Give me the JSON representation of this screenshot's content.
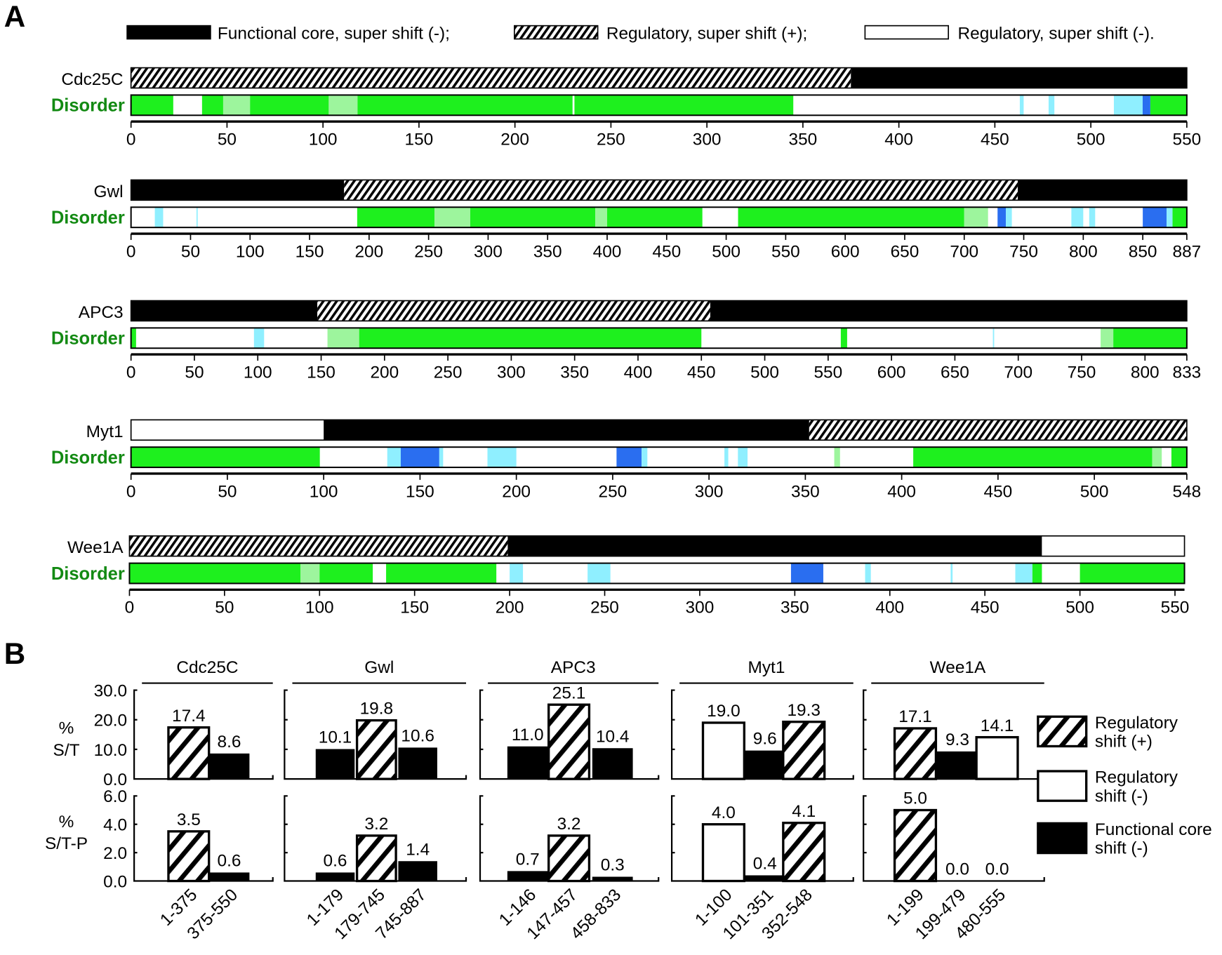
{
  "panel_a_label": "A",
  "panel_b_label": "B",
  "legend_a": [
    {
      "type": "core",
      "label": "Functional core, super shift (-);"
    },
    {
      "type": "hatch",
      "label": "Regulatory, super shift (+);"
    },
    {
      "type": "white",
      "label": "Regulatory,  super shift (-)."
    }
  ],
  "disorder_label": "Disorder",
  "colors": {
    "core": "#000000",
    "green": "#1ef01e",
    "light_green": "#9df59d",
    "cyan": "#8fefff",
    "blue": "#2a6ef0",
    "disorder_text": "#138a13"
  },
  "chart_data": [
    {
      "type": "domain-map",
      "proteins": [
        {
          "name": "Cdc25C",
          "length": 550,
          "ticks": [
            0,
            50,
            100,
            150,
            200,
            250,
            300,
            350,
            400,
            450,
            500,
            550
          ],
          "domains": [
            {
              "start": 0,
              "end": 375,
              "type": "hatch"
            },
            {
              "start": 375,
              "end": 550,
              "type": "core"
            }
          ],
          "disorder": [
            [
              0,
              22,
              "g"
            ],
            [
              37,
              48,
              "g"
            ],
            [
              48,
              62,
              "lg"
            ],
            [
              62,
              103,
              "g"
            ],
            [
              103,
              118,
              "lg"
            ],
            [
              118,
              230,
              "g"
            ],
            [
              231,
              345,
              "g"
            ],
            [
              463,
              465,
              "c"
            ],
            [
              478,
              481,
              "c"
            ],
            [
              512,
              527,
              "c"
            ],
            [
              527,
              531,
              "b"
            ],
            [
              531,
              550,
              "g"
            ]
          ]
        },
        {
          "name": "Gwl",
          "length": 887,
          "ticks": [
            0,
            50,
            100,
            150,
            200,
            250,
            300,
            350,
            400,
            450,
            500,
            550,
            600,
            650,
            700,
            750,
            800,
            850,
            887
          ],
          "domains": [
            {
              "start": 0,
              "end": 179,
              "type": "core"
            },
            {
              "start": 179,
              "end": 745,
              "type": "hatch"
            },
            {
              "start": 745,
              "end": 887,
              "type": "core"
            }
          ],
          "disorder": [
            [
              20,
              27,
              "c"
            ],
            [
              55,
              56,
              "c"
            ],
            [
              190,
              255,
              "g"
            ],
            [
              255,
              285,
              "lg"
            ],
            [
              285,
              390,
              "g"
            ],
            [
              390,
              400,
              "lg"
            ],
            [
              400,
              480,
              "g"
            ],
            [
              510,
              700,
              "g"
            ],
            [
              700,
              720,
              "lg"
            ],
            [
              728,
              735,
              "b"
            ],
            [
              735,
              740,
              "c"
            ],
            [
              790,
              800,
              "c"
            ],
            [
              805,
              810,
              "c"
            ],
            [
              850,
              870,
              "b"
            ],
            [
              870,
              875,
              "c"
            ],
            [
              875,
              887,
              "g"
            ]
          ]
        },
        {
          "name": "APC3",
          "length": 833,
          "ticks": [
            0,
            50,
            100,
            150,
            200,
            250,
            300,
            350,
            400,
            450,
            500,
            550,
            600,
            650,
            700,
            750,
            800,
            833
          ],
          "domains": [
            {
              "start": 0,
              "end": 147,
              "type": "core"
            },
            {
              "start": 147,
              "end": 457,
              "type": "hatch"
            },
            {
              "start": 457,
              "end": 833,
              "type": "core"
            }
          ],
          "disorder": [
            [
              0,
              4,
              "g"
            ],
            [
              97,
              105,
              "c"
            ],
            [
              155,
              180,
              "lg"
            ],
            [
              180,
              450,
              "g"
            ],
            [
              560,
              565,
              "g"
            ],
            [
              680,
              681,
              "c"
            ],
            [
              765,
              775,
              "lg"
            ],
            [
              775,
              833,
              "g"
            ]
          ]
        },
        {
          "name": "Myt1",
          "length": 548,
          "ticks": [
            0,
            50,
            100,
            150,
            200,
            250,
            300,
            350,
            400,
            450,
            500,
            548
          ],
          "domains": [
            {
              "start": 0,
              "end": 100,
              "type": "white"
            },
            {
              "start": 100,
              "end": 352,
              "type": "core"
            },
            {
              "start": 352,
              "end": 548,
              "type": "hatch"
            }
          ],
          "disorder": [
            [
              0,
              98,
              "g"
            ],
            [
              133,
              140,
              "c"
            ],
            [
              140,
              160,
              "b"
            ],
            [
              160,
              162,
              "c"
            ],
            [
              185,
              200,
              "c"
            ],
            [
              252,
              265,
              "b"
            ],
            [
              265,
              268,
              "c"
            ],
            [
              308,
              310,
              "c"
            ],
            [
              315,
              320,
              "c"
            ],
            [
              365,
              368,
              "lg"
            ],
            [
              406,
              530,
              "g"
            ],
            [
              530,
              535,
              "lg"
            ],
            [
              540,
              548,
              "g"
            ]
          ]
        },
        {
          "name": "Wee1A",
          "length": 555,
          "ticks": [
            0,
            50,
            100,
            150,
            200,
            250,
            300,
            350,
            400,
            450,
            500,
            550
          ],
          "domains": [
            {
              "start": 0,
              "end": 199,
              "type": "hatch"
            },
            {
              "start": 199,
              "end": 480,
              "type": "core"
            },
            {
              "start": 480,
              "end": 555,
              "type": "white"
            }
          ],
          "disorder": [
            [
              0,
              90,
              "g"
            ],
            [
              90,
              100,
              "lg"
            ],
            [
              100,
              128,
              "g"
            ],
            [
              135,
              193,
              "g"
            ],
            [
              200,
              207,
              "c"
            ],
            [
              241,
              253,
              "c"
            ],
            [
              348,
              365,
              "b"
            ],
            [
              387,
              390,
              "c"
            ],
            [
              432,
              433,
              "c"
            ],
            [
              466,
              475,
              "c"
            ],
            [
              475,
              480,
              "g"
            ],
            [
              500,
              555,
              "g"
            ]
          ]
        }
      ]
    },
    {
      "type": "bar",
      "ylabels": {
        "st": [
          "%",
          "S/T"
        ],
        "stp": [
          "%",
          "S/T-P"
        ]
      },
      "st_ticks": [
        "30.0",
        "20.0",
        "10.0",
        "0.0"
      ],
      "st_ylim": [
        0,
        30
      ],
      "stp_ticks": [
        "6.0",
        "4.0",
        "2.0",
        "0.0"
      ],
      "stp_ylim": [
        0,
        6
      ],
      "groups": [
        {
          "name": "Cdc25C",
          "categories": [
            "1-375",
            "375-550"
          ],
          "types": [
            "hatch",
            "core"
          ],
          "st": [
            "17.4",
            "8.6"
          ],
          "stp": [
            "3.5",
            "0.6"
          ]
        },
        {
          "name": "Gwl",
          "categories": [
            "1-179",
            "179-745",
            "745-887"
          ],
          "types": [
            "core",
            "hatch",
            "core"
          ],
          "st": [
            "10.1",
            "19.8",
            "10.6"
          ],
          "stp": [
            "0.6",
            "3.2",
            "1.4"
          ]
        },
        {
          "name": "APC3",
          "categories": [
            "1-146",
            "147-457",
            "458-833"
          ],
          "types": [
            "core",
            "hatch",
            "core"
          ],
          "st": [
            "11.0",
            "25.1",
            "10.4"
          ],
          "stp": [
            "0.7",
            "3.2",
            "0.3"
          ]
        },
        {
          "name": "Myt1",
          "categories": [
            "1-100",
            "101-351",
            "352-548"
          ],
          "types": [
            "white",
            "core",
            "hatch"
          ],
          "st": [
            "19.0",
            "9.6",
            "19.3"
          ],
          "stp": [
            "4.0",
            "0.4",
            "4.1"
          ]
        },
        {
          "name": "Wee1A",
          "categories": [
            "1-199",
            "199-479",
            "480-555"
          ],
          "types": [
            "hatch",
            "core",
            "white"
          ],
          "st": [
            "17.1",
            "9.3",
            "14.1"
          ],
          "stp": [
            "5.0",
            "0.0",
            "0.0"
          ]
        }
      ],
      "legend": [
        {
          "type": "hatch",
          "lines": [
            "Regulatory",
            "shift (+)"
          ]
        },
        {
          "type": "white",
          "lines": [
            "Regulatory",
            "shift (-)"
          ]
        },
        {
          "type": "core",
          "lines": [
            "Functional core",
            "shift (-)"
          ]
        }
      ]
    }
  ]
}
